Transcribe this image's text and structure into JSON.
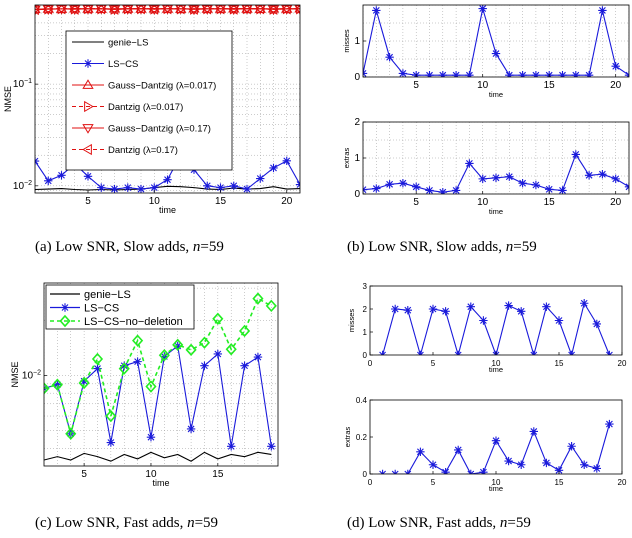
{
  "chart_data": [
    {
      "id": "a",
      "type": "line",
      "caption": "(a) Low SNR, Slow adds, n=59",
      "caption_parts": {
        "text": "(a) Low SNR, Slow adds, ",
        "var": "n",
        "tail": "=59"
      },
      "xlabel": "time",
      "ylabel": "NMSE",
      "yscale": "log",
      "xlim": [
        1,
        21
      ],
      "ylim": [
        0.0085,
        0.6
      ],
      "xticks": [
        5,
        10,
        15,
        20
      ],
      "yticks": [
        {
          "v": 0.1,
          "base": "10",
          "exp": "−1"
        },
        {
          "v": 0.01,
          "base": "10",
          "exp": "−2"
        }
      ],
      "grid": true,
      "legend_position": "center",
      "series": [
        {
          "name": "genie−LS",
          "color": "#000000",
          "dash": "",
          "marker": "none",
          "values": [
            0.0092,
            0.0093,
            0.0094,
            0.0092,
            0.0091,
            0.0092,
            0.0091,
            0.0092,
            0.0093,
            0.0096,
            0.0099,
            0.0098,
            0.0096,
            0.0093,
            0.0092,
            0.0095,
            0.0093,
            0.0094,
            0.0098,
            0.0093,
            0.0094
          ]
        },
        {
          "name": "LS−CS",
          "color": "#1a1adb",
          "dash": "",
          "marker": "star",
          "values": [
            0.0175,
            0.0112,
            0.0127,
            0.0165,
            0.0124,
            0.0096,
            0.0093,
            0.0096,
            0.0093,
            0.0096,
            0.0115,
            0.0201,
            0.0144,
            0.01,
            0.0096,
            0.01,
            0.0093,
            0.0118,
            0.015,
            0.0176,
            0.0103
          ]
        },
        {
          "name": "Gauss−Dantzig (λ=0.017)",
          "color": "#e01010",
          "dash": "",
          "marker": "tri-up",
          "values": [
            0.545,
            0.55,
            0.548,
            0.553,
            0.55,
            0.548,
            0.552,
            0.55,
            0.549,
            0.553,
            0.55,
            0.548,
            0.552,
            0.55,
            0.549,
            0.553,
            0.55,
            0.548,
            0.552,
            0.55,
            0.553
          ]
        },
        {
          "name": "Dantzig (λ=0.017)",
          "color": "#e01010",
          "dash": "4,3",
          "marker": "tri-right",
          "values": [
            0.543,
            0.548,
            0.552,
            0.548,
            0.553,
            0.55,
            0.546,
            0.551,
            0.552,
            0.548,
            0.553,
            0.55,
            0.546,
            0.551,
            0.552,
            0.548,
            0.553,
            0.55,
            0.546,
            0.551,
            0.55
          ]
        },
        {
          "name": "Gauss−Dantzig (λ=0.17)",
          "color": "#e01010",
          "dash": "",
          "marker": "tri-down",
          "values": [
            0.54,
            0.546,
            0.55,
            0.545,
            0.55,
            0.552,
            0.544,
            0.549,
            0.552,
            0.546,
            0.551,
            0.552,
            0.544,
            0.549,
            0.552,
            0.546,
            0.551,
            0.552,
            0.544,
            0.549,
            0.548
          ]
        },
        {
          "name": "Dantzig (λ=0.17)",
          "color": "#e01010",
          "dash": "4,3",
          "marker": "tri-left",
          "values": [
            0.542,
            0.547,
            0.551,
            0.546,
            0.551,
            0.551,
            0.545,
            0.55,
            0.551,
            0.547,
            0.552,
            0.551,
            0.545,
            0.55,
            0.551,
            0.547,
            0.552,
            0.551,
            0.545,
            0.55,
            0.549
          ]
        }
      ]
    },
    {
      "id": "b1",
      "type": "line",
      "xlabel": "time",
      "ylabel": "misses",
      "xlim": [
        1,
        21
      ],
      "ylim": [
        0,
        2
      ],
      "xticks": [
        5,
        10,
        15,
        20
      ],
      "yticks": [
        {
          "v": 0,
          "label": "0"
        },
        {
          "v": 1,
          "label": "1"
        }
      ],
      "grid": true,
      "series": [
        {
          "name": "",
          "color": "#1a1adb",
          "dash": "",
          "marker": "star",
          "values": [
            0.1,
            1.85,
            0.55,
            0.1,
            0.05,
            0.05,
            0.05,
            0.05,
            0.05,
            1.9,
            0.65,
            0.05,
            0.05,
            0.05,
            0.05,
            0.05,
            0.05,
            0.05,
            1.85,
            0.3,
            0.05
          ]
        }
      ]
    },
    {
      "id": "b2",
      "type": "line",
      "caption": "(b) Low SNR, Slow adds, n=59",
      "caption_parts": {
        "text": "(b) Low SNR, Slow adds, ",
        "var": "n",
        "tail": "=59"
      },
      "xlabel": "time",
      "ylabel": "extras",
      "xlim": [
        1,
        21
      ],
      "ylim": [
        0,
        2
      ],
      "xticks": [
        5,
        10,
        15,
        20
      ],
      "yticks": [
        {
          "v": 0,
          "label": "0"
        },
        {
          "v": 1,
          "label": "1"
        },
        {
          "v": 2,
          "label": "2"
        }
      ],
      "grid": true,
      "series": [
        {
          "name": "",
          "color": "#1a1adb",
          "dash": "",
          "marker": "star",
          "values": [
            0.12,
            0.15,
            0.27,
            0.3,
            0.2,
            0.1,
            0.05,
            0.1,
            0.85,
            0.42,
            0.45,
            0.48,
            0.3,
            0.25,
            0.13,
            0.1,
            1.1,
            0.52,
            0.55,
            0.42,
            0.2
          ]
        }
      ]
    },
    {
      "id": "c",
      "type": "line",
      "caption": "(c) Low SNR, Fast adds, n=59",
      "caption_parts": {
        "text": "(c) Low SNR, Fast adds, ",
        "var": "n",
        "tail": "=59"
      },
      "xlabel": "time",
      "ylabel": "NMSE",
      "yscale": "log",
      "xlim": [
        2,
        19.5
      ],
      "ylim": [
        0.0032,
        0.032
      ],
      "xticks": [
        5,
        10,
        15
      ],
      "yticks": [
        {
          "v": 0.01,
          "base": "10",
          "exp": "−2"
        }
      ],
      "grid": true,
      "legend_position": "top-left",
      "series": [
        {
          "name": "genie−LS",
          "color": "#000000",
          "dash": "",
          "marker": "none",
          "values": [
            0.00345,
            0.0036,
            0.00345,
            0.00375,
            0.0036,
            0.0034,
            0.0037,
            0.0035,
            0.0038,
            0.00355,
            0.0037,
            0.0034,
            0.0038,
            0.0035,
            0.0037,
            0.0036,
            0.0038,
            0.0037
          ]
        },
        {
          "name": "LS−CS",
          "color": "#1a1adb",
          "dash": "",
          "marker": "star",
          "values": [
            0.0085,
            0.0089,
            0.0048,
            0.0093,
            0.0109,
            0.0043,
            0.0113,
            0.0119,
            0.0046,
            0.0127,
            0.0145,
            0.0051,
            0.0113,
            0.0131,
            0.0041,
            0.0113,
            0.0126,
            0.0041
          ]
        },
        {
          "name": "LS−CS−no−deletion",
          "color": "#22ee22",
          "dash": "4,3",
          "marker": "diamond",
          "values": [
            0.0085,
            0.0089,
            0.0048,
            0.0091,
            0.0123,
            0.006,
            0.0109,
            0.0155,
            0.0087,
            0.0129,
            0.0147,
            0.0138,
            0.0151,
            0.0204,
            0.0139,
            0.0175,
            0.0263,
            0.024
          ]
        }
      ]
    },
    {
      "id": "d1",
      "type": "line",
      "xlabel": "time",
      "ylabel": "misses",
      "xlim": [
        0,
        20
      ],
      "ylim": [
        0,
        3
      ],
      "xticks": [
        0,
        5,
        10,
        15,
        20
      ],
      "yticks": [
        {
          "v": 0,
          "label": "0"
        },
        {
          "v": 1,
          "label": "1"
        },
        {
          "v": 2,
          "label": "2"
        },
        {
          "v": 3,
          "label": "3"
        }
      ],
      "grid": false,
      "series": [
        {
          "name": "",
          "color": "#1a1adb",
          "dash": "",
          "marker": "star",
          "values": [
            0,
            2,
            1.95,
            0,
            2,
            1.9,
            0,
            2.1,
            1.5,
            0,
            2.15,
            1.9,
            0,
            2.1,
            1.5,
            0,
            2.25,
            1.35,
            0
          ]
        }
      ],
      "x": [
        1,
        2,
        3,
        4,
        5,
        6,
        7,
        8,
        9,
        10,
        11,
        12,
        13,
        14,
        15,
        16,
        17,
        18,
        19
      ]
    },
    {
      "id": "d2",
      "type": "line",
      "caption": "(d) Low SNR, Fast adds, n=59",
      "caption_parts": {
        "text": "(d) Low SNR, Fast adds, ",
        "var": "n",
        "tail": "=59"
      },
      "xlabel": "time",
      "ylabel": "extras",
      "xlim": [
        0,
        20
      ],
      "ylim": [
        0,
        0.4
      ],
      "xticks": [
        0,
        5,
        10,
        15,
        20
      ],
      "yticks": [
        {
          "v": 0,
          "label": "0"
        },
        {
          "v": 0.2,
          "label": "0.2"
        },
        {
          "v": 0.4,
          "label": "0.4"
        }
      ],
      "grid": false,
      "series": [
        {
          "name": "",
          "color": "#1a1adb",
          "dash": "",
          "marker": "star",
          "values": [
            0,
            0,
            0,
            0.12,
            0.05,
            0.01,
            0.13,
            0,
            0.01,
            0.18,
            0.07,
            0.05,
            0.23,
            0.06,
            0.02,
            0.15,
            0.05,
            0.03,
            0.27
          ]
        }
      ],
      "x": [
        1,
        2,
        3,
        4,
        5,
        6,
        7,
        8,
        9,
        10,
        11,
        12,
        13,
        14,
        15,
        16,
        17,
        18,
        19
      ]
    }
  ]
}
